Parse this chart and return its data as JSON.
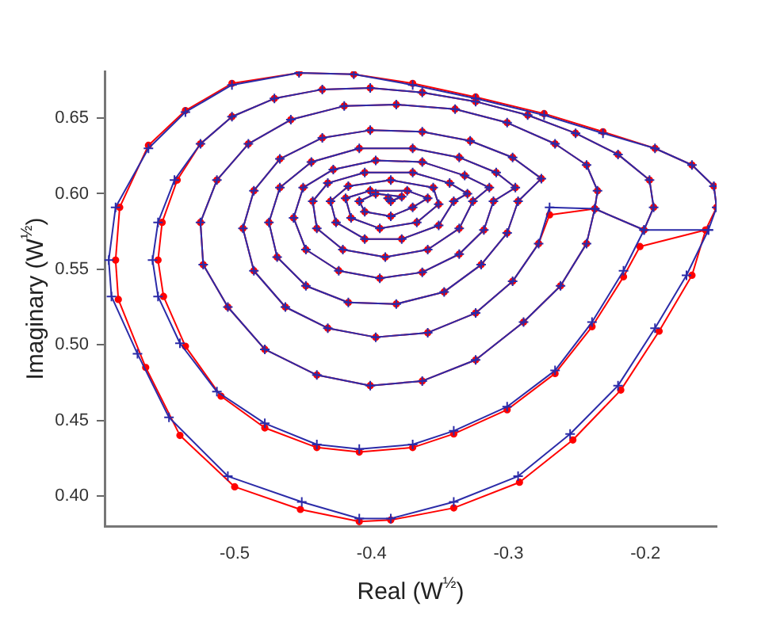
{
  "chart_data": {
    "type": "line",
    "xlabel": "Real (W$^{½}$)",
    "ylabel": "Imaginary (W$^{½}$)",
    "xlim": [
      -0.595,
      -0.148
    ],
    "xticks": [
      -0.5,
      -0.4,
      -0.3,
      -0.2
    ],
    "ylim": [
      0.38,
      0.681
    ],
    "yticks": [
      {
        "value": 0.4,
        "label": "0.40"
      },
      {
        "value": 0.45,
        "label": "0.45"
      },
      {
        "value": 0.5,
        "label": "0.50"
      },
      {
        "value": 0.55,
        "label": "0.55"
      },
      {
        "value": 0.6,
        "label": "0.60"
      },
      {
        "value": 0.65,
        "label": "0.65"
      }
    ],
    "grid": false,
    "legend": false,
    "line_style": "solid",
    "series": [
      {
        "color": "#ff0000",
        "marker": "circle",
        "x": [
          -0.156,
          -0.166,
          -0.19,
          -0.218,
          -0.253,
          -0.292,
          -0.34,
          -0.386,
          -0.409,
          -0.452,
          -0.5,
          -0.54,
          -0.565,
          -0.585,
          -0.587,
          -0.584,
          -0.563,
          -0.536,
          -0.502,
          -0.453,
          -0.413,
          -0.37,
          -0.324,
          -0.274,
          -0.231,
          -0.193,
          -0.166,
          -0.15,
          -0.148,
          -0.156,
          -0.204,
          -0.216,
          -0.239,
          -0.266,
          -0.301,
          -0.34,
          -0.37,
          -0.409,
          -0.44,
          -0.478,
          -0.51,
          -0.536,
          -0.552,
          -0.556,
          -0.553,
          -0.542,
          -0.525,
          -0.502,
          -0.471,
          -0.436,
          -0.401,
          -0.363,
          -0.324,
          -0.286,
          -0.251,
          -0.22,
          -0.197,
          -0.194,
          -0.201,
          -0.237,
          -0.243,
          -0.262,
          -0.289,
          -0.324,
          -0.363,
          -0.401,
          -0.44,
          -0.478,
          -0.505,
          -0.523,
          -0.525,
          -0.513,
          -0.49,
          -0.459,
          -0.42,
          -0.382,
          -0.339,
          -0.301,
          -0.266,
          -0.243,
          -0.235,
          -0.237,
          -0.27,
          -0.278,
          -0.297,
          -0.324,
          -0.359,
          -0.397,
          -0.432,
          -0.463,
          -0.486,
          -0.494,
          -0.486,
          -0.467,
          -0.436,
          -0.401,
          -0.363,
          -0.328,
          -0.297,
          -0.276,
          -0.293,
          -0.301,
          -0.32,
          -0.347,
          -0.382,
          -0.417,
          -0.448,
          -0.469,
          -0.475,
          -0.467,
          -0.444,
          -0.409,
          -0.37,
          -0.336,
          -0.309,
          -0.295,
          -0.311,
          -0.318,
          -0.336,
          -0.363,
          -0.394,
          -0.424,
          -0.448,
          -0.457,
          -0.45,
          -0.428,
          -0.397,
          -0.363,
          -0.332,
          -0.314,
          -0.326,
          -0.336,
          -0.359,
          -0.39,
          -0.421,
          -0.44,
          -0.443,
          -0.432,
          -0.405,
          -0.37,
          -0.343,
          -0.33,
          -0.34,
          -0.351,
          -0.378,
          -0.405,
          -0.426,
          -0.43,
          -0.417,
          -0.386,
          -0.355,
          -0.351,
          -0.367,
          -0.394,
          -0.415,
          -0.419,
          -0.401,
          -0.374,
          -0.359,
          -0.37,
          -0.386,
          -0.405,
          -0.409,
          -0.397,
          -0.378,
          -0.386,
          -0.388
        ],
        "values": [
          0.576,
          0.546,
          0.509,
          0.47,
          0.437,
          0.409,
          0.392,
          0.384,
          0.383,
          0.391,
          0.406,
          0.44,
          0.485,
          0.53,
          0.556,
          0.591,
          0.632,
          0.655,
          0.673,
          0.68,
          0.679,
          0.673,
          0.664,
          0.653,
          0.641,
          0.63,
          0.619,
          0.605,
          0.591,
          0.576,
          0.565,
          0.545,
          0.512,
          0.481,
          0.457,
          0.441,
          0.432,
          0.429,
          0.432,
          0.445,
          0.466,
          0.499,
          0.532,
          0.556,
          0.581,
          0.609,
          0.633,
          0.651,
          0.663,
          0.669,
          0.67,
          0.667,
          0.661,
          0.652,
          0.64,
          0.626,
          0.609,
          0.591,
          0.576,
          0.59,
          0.567,
          0.539,
          0.515,
          0.49,
          0.476,
          0.473,
          0.48,
          0.497,
          0.525,
          0.553,
          0.581,
          0.609,
          0.633,
          0.649,
          0.658,
          0.659,
          0.656,
          0.647,
          0.633,
          0.619,
          0.602,
          0.59,
          0.586,
          0.567,
          0.542,
          0.521,
          0.508,
          0.505,
          0.511,
          0.525,
          0.549,
          0.577,
          0.602,
          0.623,
          0.637,
          0.642,
          0.641,
          0.635,
          0.624,
          0.61,
          0.595,
          0.574,
          0.553,
          0.535,
          0.527,
          0.528,
          0.539,
          0.558,
          0.581,
          0.604,
          0.621,
          0.63,
          0.63,
          0.624,
          0.614,
          0.604,
          0.595,
          0.576,
          0.56,
          0.548,
          0.544,
          0.549,
          0.563,
          0.584,
          0.604,
          0.616,
          0.622,
          0.621,
          0.612,
          0.604,
          0.595,
          0.577,
          0.563,
          0.558,
          0.563,
          0.577,
          0.595,
          0.607,
          0.614,
          0.614,
          0.607,
          0.6,
          0.595,
          0.579,
          0.57,
          0.57,
          0.581,
          0.595,
          0.605,
          0.609,
          0.604,
          0.593,
          0.581,
          0.577,
          0.584,
          0.597,
          0.602,
          0.602,
          0.597,
          0.591,
          0.585,
          0.588,
          0.595,
          0.6,
          0.598,
          0.595,
          0.597
        ]
      },
      {
        "color": "#2b2ba8",
        "marker": "cross",
        "x": [
          -0.154,
          -0.17,
          -0.193,
          -0.22,
          -0.255,
          -0.293,
          -0.34,
          -0.386,
          -0.409,
          -0.451,
          -0.505,
          -0.548,
          -0.571,
          -0.59,
          -0.592,
          -0.587,
          -0.563,
          -0.536,
          -0.502,
          -0.453,
          -0.413,
          -0.37,
          -0.324,
          -0.274,
          -0.231,
          -0.193,
          -0.166,
          -0.15,
          -0.148,
          -0.154,
          -0.201,
          -0.216,
          -0.239,
          -0.266,
          -0.301,
          -0.34,
          -0.37,
          -0.409,
          -0.44,
          -0.478,
          -0.513,
          -0.54,
          -0.556,
          -0.56,
          -0.556,
          -0.544,
          -0.525,
          -0.502,
          -0.471,
          -0.436,
          -0.401,
          -0.363,
          -0.324,
          -0.286,
          -0.251,
          -0.22,
          -0.197,
          -0.194,
          -0.201,
          -0.237,
          -0.243,
          -0.262,
          -0.289,
          -0.324,
          -0.363,
          -0.401,
          -0.44,
          -0.478,
          -0.505,
          -0.523,
          -0.525,
          -0.513,
          -0.49,
          -0.459,
          -0.42,
          -0.382,
          -0.339,
          -0.301,
          -0.266,
          -0.243,
          -0.235,
          -0.237,
          -0.27,
          -0.278,
          -0.297,
          -0.324,
          -0.359,
          -0.397,
          -0.432,
          -0.463,
          -0.486,
          -0.494,
          -0.486,
          -0.467,
          -0.436,
          -0.401,
          -0.363,
          -0.328,
          -0.297,
          -0.276,
          -0.293,
          -0.301,
          -0.32,
          -0.347,
          -0.382,
          -0.417,
          -0.448,
          -0.469,
          -0.475,
          -0.467,
          -0.444,
          -0.409,
          -0.37,
          -0.336,
          -0.309,
          -0.295,
          -0.311,
          -0.318,
          -0.336,
          -0.363,
          -0.394,
          -0.424,
          -0.448,
          -0.457,
          -0.45,
          -0.428,
          -0.397,
          -0.363,
          -0.332,
          -0.314,
          -0.326,
          -0.336,
          -0.359,
          -0.39,
          -0.421,
          -0.44,
          -0.443,
          -0.432,
          -0.405,
          -0.37,
          -0.343,
          -0.33,
          -0.34,
          -0.351,
          -0.378,
          -0.405,
          -0.426,
          -0.43,
          -0.417,
          -0.386,
          -0.355,
          -0.351,
          -0.367,
          -0.394,
          -0.415,
          -0.419,
          -0.401,
          -0.374,
          -0.359,
          -0.37,
          -0.386,
          -0.405,
          -0.409,
          -0.397,
          -0.378,
          -0.386,
          -0.388
        ],
        "values": [
          0.576,
          0.546,
          0.511,
          0.473,
          0.441,
          0.413,
          0.396,
          0.385,
          0.385,
          0.396,
          0.413,
          0.452,
          0.494,
          0.532,
          0.556,
          0.591,
          0.63,
          0.654,
          0.672,
          0.68,
          0.679,
          0.672,
          0.663,
          0.652,
          0.64,
          0.63,
          0.619,
          0.605,
          0.591,
          0.576,
          0.576,
          0.549,
          0.515,
          0.483,
          0.459,
          0.443,
          0.434,
          0.431,
          0.434,
          0.448,
          0.469,
          0.501,
          0.532,
          0.556,
          0.581,
          0.609,
          0.633,
          0.651,
          0.663,
          0.669,
          0.67,
          0.667,
          0.661,
          0.652,
          0.64,
          0.626,
          0.609,
          0.591,
          0.576,
          0.59,
          0.567,
          0.539,
          0.515,
          0.49,
          0.476,
          0.473,
          0.48,
          0.497,
          0.525,
          0.553,
          0.581,
          0.609,
          0.633,
          0.649,
          0.658,
          0.659,
          0.656,
          0.647,
          0.633,
          0.619,
          0.602,
          0.59,
          0.591,
          0.567,
          0.542,
          0.521,
          0.508,
          0.505,
          0.511,
          0.525,
          0.549,
          0.577,
          0.602,
          0.623,
          0.637,
          0.642,
          0.641,
          0.635,
          0.624,
          0.61,
          0.595,
          0.574,
          0.553,
          0.535,
          0.527,
          0.528,
          0.539,
          0.558,
          0.581,
          0.604,
          0.621,
          0.63,
          0.63,
          0.624,
          0.614,
          0.604,
          0.595,
          0.576,
          0.56,
          0.548,
          0.544,
          0.549,
          0.563,
          0.584,
          0.604,
          0.616,
          0.622,
          0.621,
          0.612,
          0.604,
          0.595,
          0.577,
          0.563,
          0.558,
          0.563,
          0.577,
          0.595,
          0.607,
          0.614,
          0.614,
          0.607,
          0.6,
          0.595,
          0.579,
          0.57,
          0.57,
          0.581,
          0.595,
          0.605,
          0.609,
          0.604,
          0.593,
          0.581,
          0.577,
          0.584,
          0.597,
          0.602,
          0.602,
          0.597,
          0.591,
          0.585,
          0.588,
          0.595,
          0.6,
          0.598,
          0.595,
          0.597
        ]
      }
    ]
  }
}
